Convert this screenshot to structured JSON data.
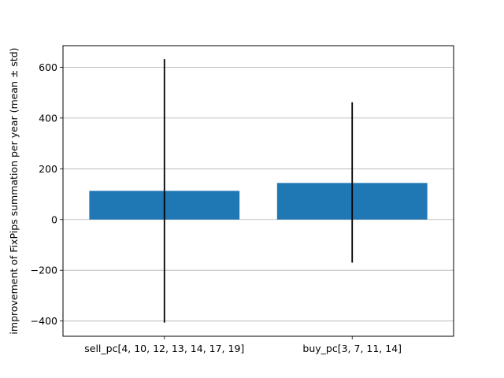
{
  "chart_data": {
    "type": "bar",
    "categories": [
      "sell_pc[4, 10, 12, 13, 14, 17, 19]",
      "buy_pc[3, 7, 11, 14]"
    ],
    "values": [
      113,
      144
    ],
    "error_bars": [
      {
        "lower": -406,
        "upper": 632
      },
      {
        "lower": -170,
        "upper": 462
      }
    ],
    "title": "",
    "xlabel": "",
    "ylabel": "improvement of FixPips summation per year (mean ± std)",
    "ylim": [
      -460,
      685
    ],
    "yticks": [
      -400,
      -200,
      0,
      200,
      400,
      600
    ],
    "ytick_labels": [
      "−400",
      "−200",
      "0",
      "200",
      "400",
      "600"
    ],
    "grid": "y-major",
    "bar_color": "#1f77b4",
    "errorbar_color": "#000000",
    "grid_color": "#b0b0b0"
  }
}
